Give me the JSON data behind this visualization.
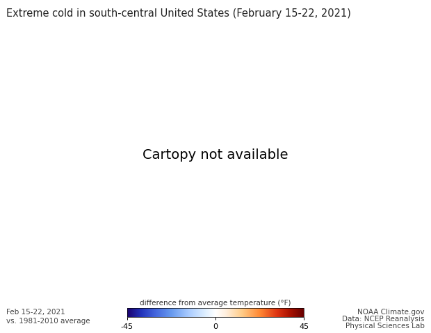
{
  "title": "Extreme cold in south-central United States (February 15-22, 2021)",
  "title_fontsize": 10.5,
  "colorbar_label": "difference from average temperature (°F)",
  "colorbar_ticks": [
    -45,
    0,
    45
  ],
  "colorbar_ticklabels": [
    "-45",
    "0",
    "45"
  ],
  "bottom_left_line1": "Feb 15-22, 2021",
  "bottom_left_line2": "vs. 1981-2010 average",
  "bottom_right_line1": "NOAA Climate.gov",
  "bottom_right_line2": "Data: NCEP Reanalysis",
  "bottom_right_line3": "Physical Sciences Lab",
  "bg_color": "#ffffff",
  "vmin": -45,
  "vmax": 45,
  "central_longitude": -95,
  "central_latitude": 45,
  "cmap_colors": [
    [
      0.0,
      "#1a006e"
    ],
    [
      0.08,
      "#2233bb"
    ],
    [
      0.16,
      "#4466dd"
    ],
    [
      0.25,
      "#6699ee"
    ],
    [
      0.35,
      "#aaccff"
    ],
    [
      0.44,
      "#ddeeff"
    ],
    [
      0.5,
      "#ffffff"
    ],
    [
      0.56,
      "#ffeedd"
    ],
    [
      0.65,
      "#ffcc88"
    ],
    [
      0.75,
      "#ff8833"
    ],
    [
      0.85,
      "#dd3311"
    ],
    [
      0.92,
      "#aa1100"
    ],
    [
      1.0,
      "#660000"
    ]
  ]
}
